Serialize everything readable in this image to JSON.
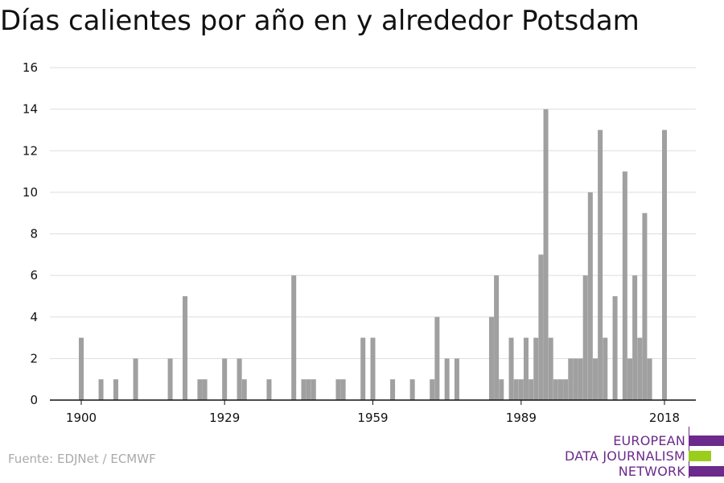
{
  "title": "Días calientes por año en y alrededor Potsdam",
  "source": "Fuente: EDJNet / ECMWF",
  "logo": {
    "lines": [
      "EUROPEAN",
      "DATA JOURNALISM",
      "NETWORK"
    ],
    "colors": {
      "purple": "#6b2a8c",
      "green": "#9acd1c"
    }
  },
  "colors": {
    "bar": "#a0a0a0",
    "grid": "#dddddd",
    "axis": "#111111",
    "text": "#111111"
  },
  "chart_data": {
    "type": "bar",
    "title": "Días calientes por año en y alrededor Potsdam",
    "xlabel": "",
    "ylabel": "",
    "xlim": [
      1900,
      2018
    ],
    "ylim": [
      0,
      16
    ],
    "x_ticks": [
      1900,
      1929,
      1959,
      1989,
      2018
    ],
    "y_ticks": [
      0,
      2,
      4,
      6,
      8,
      10,
      12,
      14,
      16
    ],
    "grid": true,
    "x": [
      1900,
      1904,
      1907,
      1911,
      1918,
      1921,
      1924,
      1925,
      1929,
      1932,
      1933,
      1938,
      1943,
      1945,
      1946,
      1947,
      1952,
      1953,
      1957,
      1959,
      1963,
      1967,
      1971,
      1972,
      1974,
      1976,
      1983,
      1984,
      1985,
      1987,
      1988,
      1989,
      1990,
      1991,
      1992,
      1993,
      1994,
      1995,
      1996,
      1997,
      1998,
      1999,
      2000,
      2001,
      2002,
      2003,
      2004,
      2005,
      2006,
      2008,
      2010,
      2011,
      2012,
      2013,
      2014,
      2015,
      2018
    ],
    "values": [
      3,
      1,
      1,
      2,
      2,
      5,
      1,
      1,
      2,
      2,
      1,
      1,
      6,
      1,
      1,
      1,
      1,
      1,
      3,
      3,
      1,
      1,
      1,
      4,
      2,
      2,
      4,
      6,
      1,
      3,
      1,
      1,
      3,
      1,
      3,
      7,
      14,
      3,
      1,
      1,
      1,
      2,
      2,
      2,
      6,
      10,
      2,
      13,
      3,
      5,
      11,
      2,
      6,
      3,
      9,
      2,
      13
    ]
  }
}
